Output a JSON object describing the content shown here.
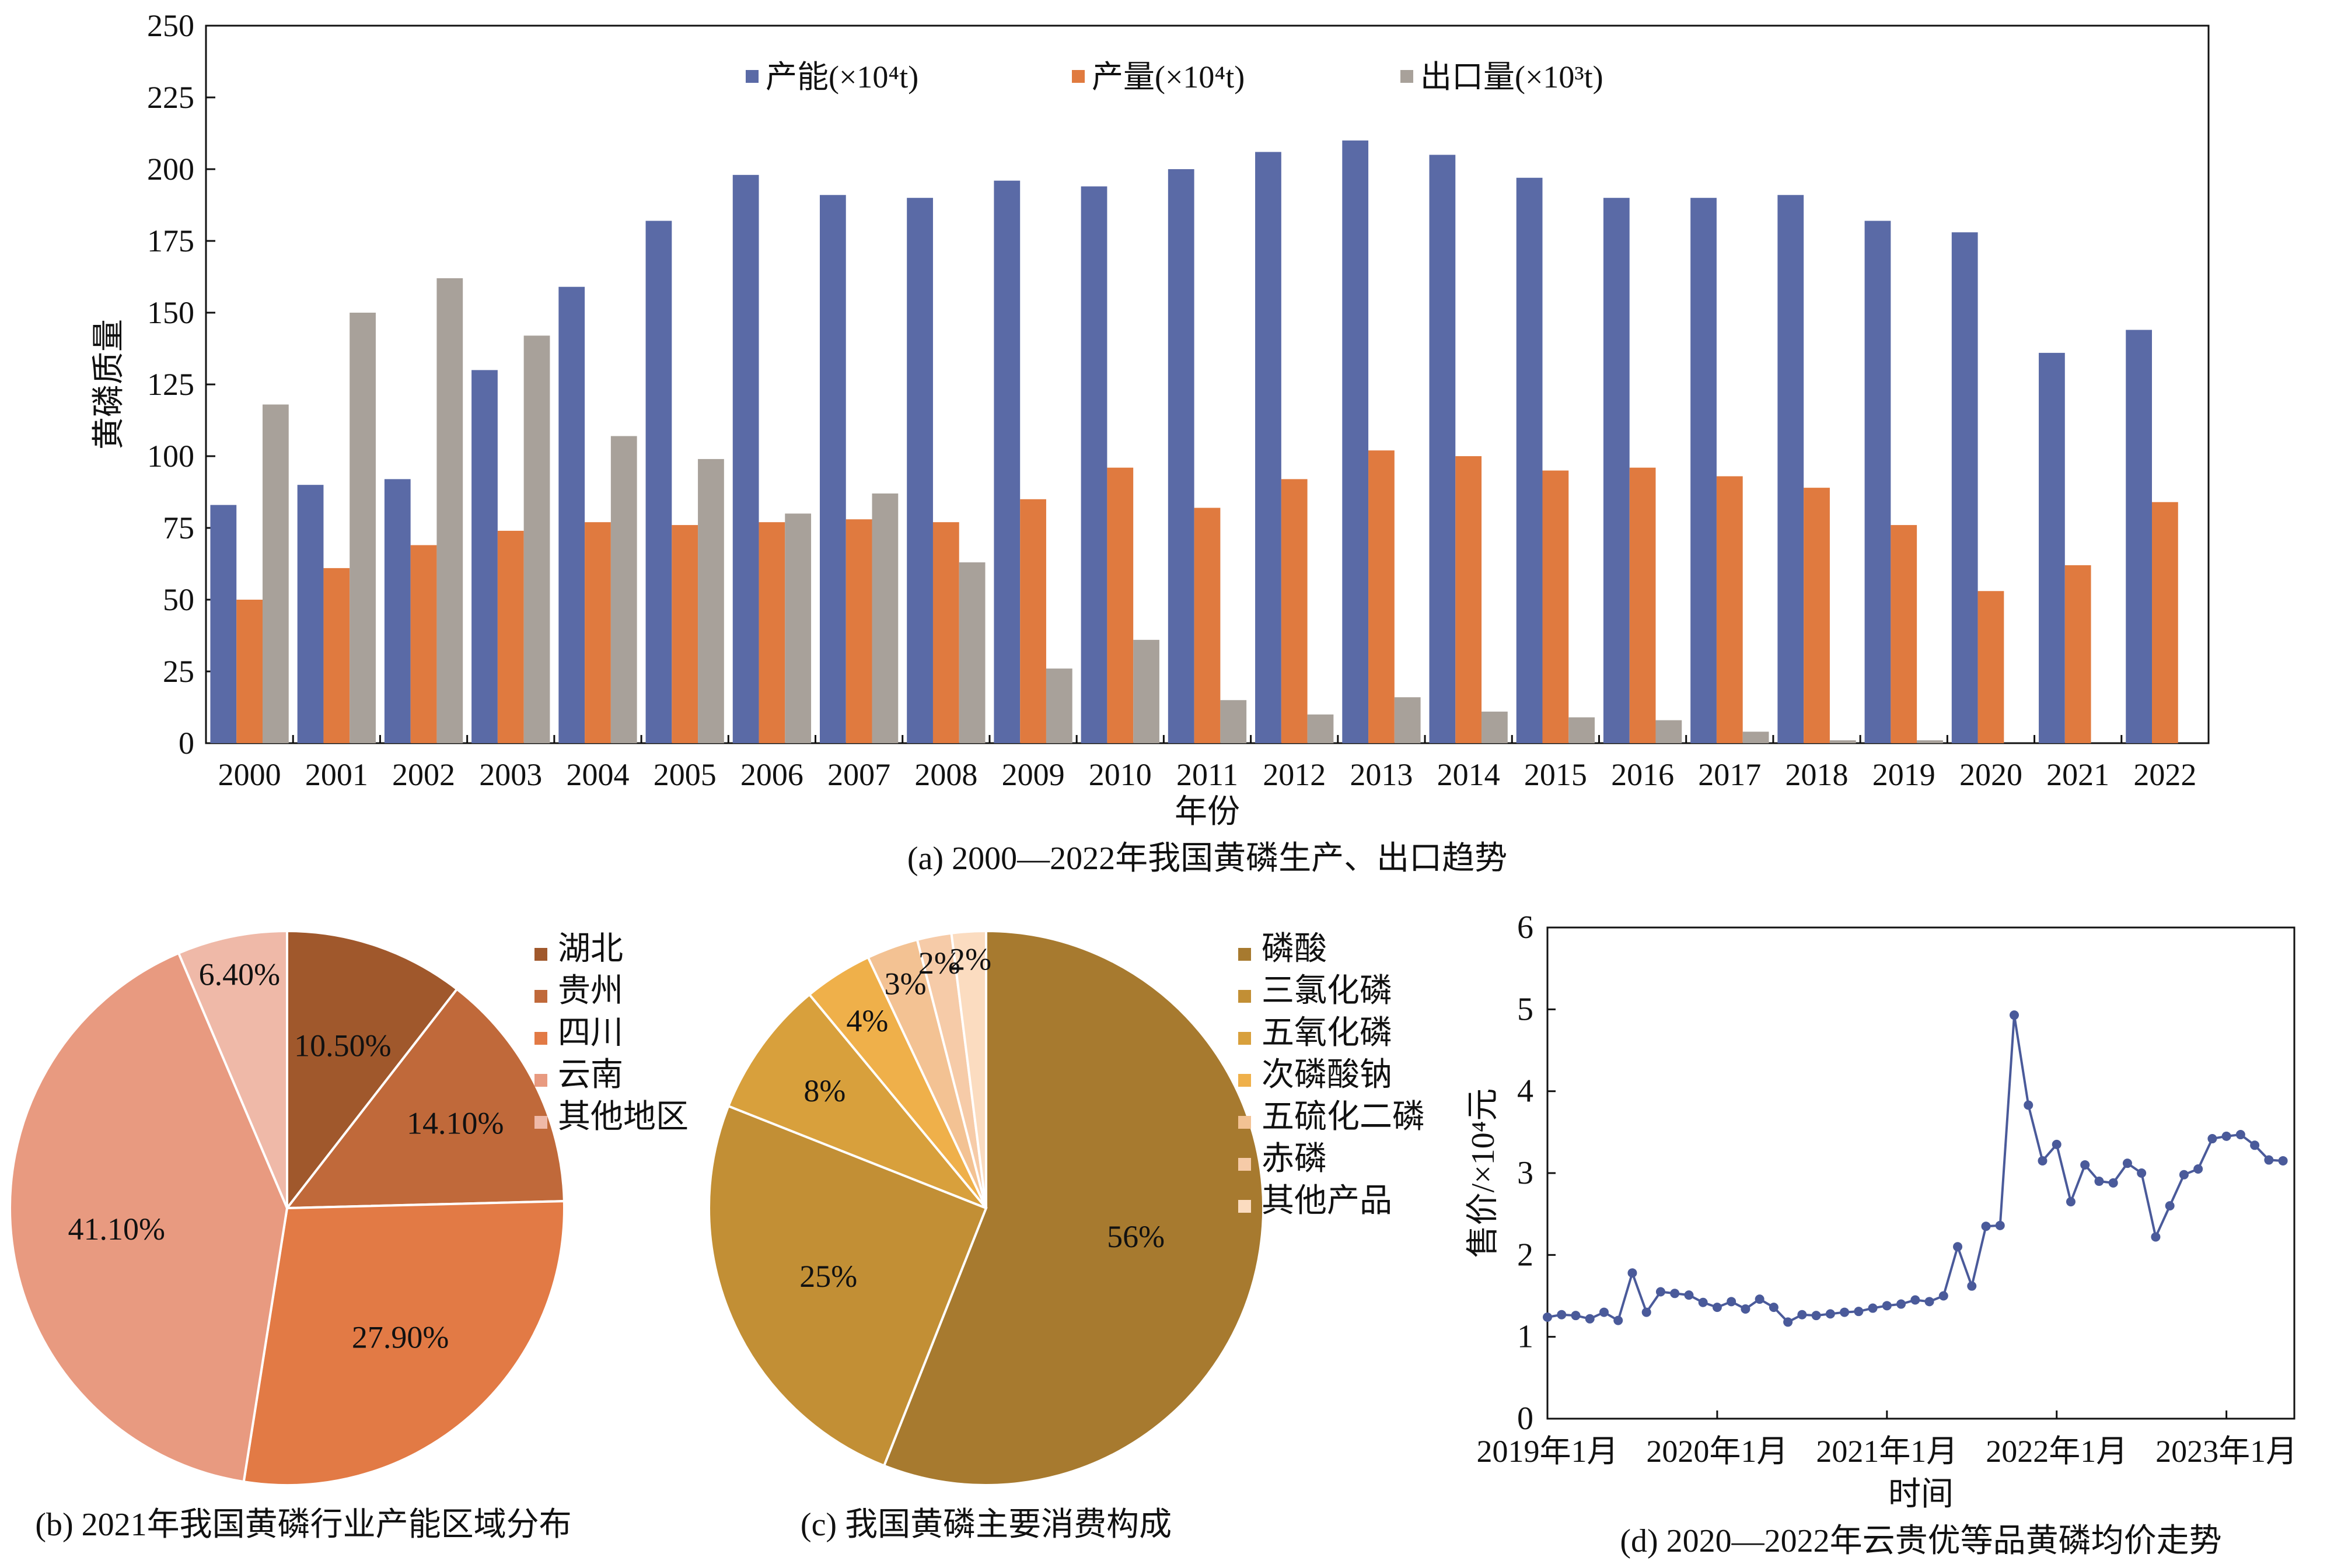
{
  "colors": {
    "capacity": "#5a6aa6",
    "output": "#e07a3f",
    "export": "#a8a19a",
    "price_line": "#4a5a9a",
    "region": [
      "#a0582c",
      "#c0693a",
      "#e27a45",
      "#e89a80",
      "#efb9a8"
    ],
    "consumption": [
      "#a77a2f",
      "#c28f35",
      "#d8a03c",
      "#efb04a",
      "#f3c293",
      "#f6cba8",
      "#fbdcc0"
    ]
  },
  "chart_data": [
    {
      "type": "bar",
      "caption": "(a) 2000—2022年我国黄磷生产、出口趋势",
      "xlabel": "年份",
      "ylabel": "黄磷质量",
      "ylim": [
        0,
        250
      ],
      "yticks": [
        "0",
        "25",
        "50",
        "75",
        "100",
        "125",
        "150",
        "175",
        "200",
        "225",
        "250"
      ],
      "legend_position": "top",
      "grid": false,
      "categories": [
        "2000",
        "2001",
        "2002",
        "2003",
        "2004",
        "2005",
        "2006",
        "2007",
        "2008",
        "2009",
        "2010",
        "2011",
        "2012",
        "2013",
        "2014",
        "2015",
        "2016",
        "2017",
        "2018",
        "2019",
        "2020",
        "2021",
        "2022"
      ],
      "series": [
        {
          "name": "产能(×10⁴t)",
          "values": [
            83,
            90,
            92,
            130,
            159,
            182,
            198,
            191,
            190,
            196,
            194,
            200,
            206,
            210,
            205,
            197,
            190,
            190,
            191,
            182,
            178,
            136,
            144
          ]
        },
        {
          "name": "产量(×10⁴t)",
          "values": [
            50,
            61,
            69,
            74,
            77,
            76,
            77,
            78,
            77,
            85,
            96,
            82,
            92,
            102,
            100,
            95,
            96,
            93,
            89,
            76,
            53,
            62,
            84
          ]
        },
        {
          "name": "出口量(×10³t)",
          "values": [
            118,
            150,
            162,
            142,
            107,
            99,
            80,
            87,
            63,
            26,
            36,
            15,
            10,
            16,
            11,
            9,
            8,
            4,
            1,
            1,
            0,
            0,
            0
          ]
        }
      ]
    },
    {
      "type": "pie",
      "caption": "(b) 2021年我国黄磷行业产能区域分布",
      "labels": [
        "湖北",
        "贵州",
        "四川",
        "云南",
        "其他地区"
      ],
      "values": [
        10.5,
        14.1,
        27.9,
        41.1,
        6.4
      ],
      "value_labels": [
        "10.50%",
        "14.10%",
        "27.90%",
        "41.10%",
        "6.40%"
      ],
      "legend_position": "right"
    },
    {
      "type": "pie",
      "caption": "(c) 我国黄磷主要消费构成",
      "labels": [
        "磷酸",
        "三氯化磷",
        "五氧化磷",
        "次磷酸钠",
        "五硫化二磷",
        "赤磷",
        "其他产品"
      ],
      "values": [
        56,
        25,
        8,
        4,
        3,
        2,
        2
      ],
      "value_labels": [
        "56%",
        "25%",
        "8%",
        "4%",
        "3%",
        "2%",
        "2%"
      ],
      "legend_position": "right"
    },
    {
      "type": "line",
      "caption": "(d) 2020—2022年云贵优等品黄磷均价走势",
      "xlabel": "时间",
      "ylabel": "售价/×10⁴元",
      "ylim": [
        0,
        6
      ],
      "yticks": [
        "0",
        "1",
        "2",
        "3",
        "4",
        "5",
        "6"
      ],
      "xticks": [
        "2019年1月",
        "2020年1月",
        "2021年1月",
        "2022年1月",
        "2023年1月"
      ],
      "x_start": "2019年1月",
      "values": [
        1.24,
        1.27,
        1.26,
        1.22,
        1.3,
        1.2,
        1.78,
        1.3,
        1.55,
        1.53,
        1.51,
        1.42,
        1.36,
        1.43,
        1.34,
        1.46,
        1.36,
        1.18,
        1.27,
        1.26,
        1.28,
        1.3,
        1.31,
        1.35,
        1.38,
        1.4,
        1.45,
        1.43,
        1.5,
        2.1,
        1.62,
        2.35,
        2.36,
        4.93,
        3.83,
        3.15,
        3.35,
        2.65,
        3.1,
        2.9,
        2.88,
        3.12,
        3.0,
        2.22,
        2.6,
        2.98,
        3.05,
        3.42,
        3.45,
        3.47,
        3.34,
        3.16,
        3.15
      ]
    }
  ]
}
